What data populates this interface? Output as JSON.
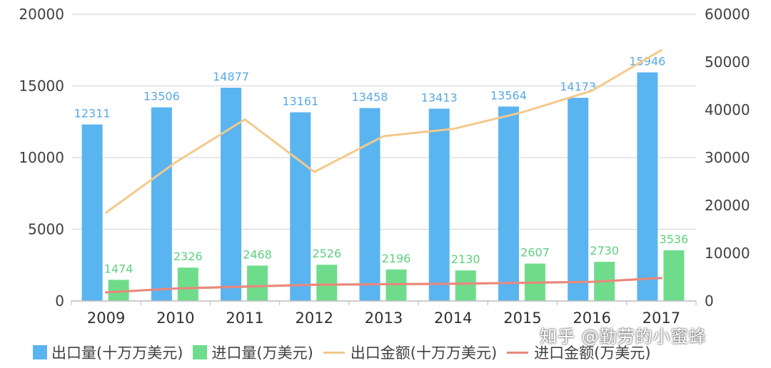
{
  "chart_data": {
    "type": "bar",
    "categories": [
      "2009",
      "2010",
      "2011",
      "2012",
      "2013",
      "2014",
      "2015",
      "2016",
      "2017"
    ],
    "series": [
      {
        "name": "出口量(十万万美元)",
        "type": "bar",
        "axis": "left",
        "color": "#5ab4f0",
        "values": [
          12311,
          13506,
          14877,
          13161,
          13458,
          13413,
          13564,
          14173,
          15946
        ]
      },
      {
        "name": "进口量(万美元)",
        "type": "bar",
        "axis": "left",
        "color": "#6fdc8c",
        "values": [
          1474,
          2326,
          2468,
          2526,
          2196,
          2130,
          2607,
          2730,
          3536
        ]
      },
      {
        "name": "出口金额(十万万美元)",
        "type": "line",
        "axis": "right",
        "color": "#f3c98b",
        "values": [
          18500,
          29000,
          38000,
          27000,
          34500,
          36000,
          39500,
          44000,
          52500
        ]
      },
      {
        "name": "进口金额(万美元)",
        "type": "line",
        "axis": "right",
        "color": "#e8897c",
        "values": [
          1800,
          2600,
          3000,
          3400,
          3500,
          3600,
          3800,
          4000,
          4800
        ]
      }
    ],
    "yleft": {
      "ylim": [
        0,
        20000
      ],
      "ticks": [
        "0",
        "5000",
        "10000",
        "15000",
        "20000"
      ]
    },
    "yright": {
      "ylim": [
        0,
        60000
      ],
      "ticks": [
        "0",
        "10000",
        "20000",
        "30000",
        "40000",
        "50000",
        "60000"
      ]
    },
    "grid": true,
    "legend_position": "bottom"
  },
  "legend": {
    "item1": "出口量(十万万美元)",
    "item2": "进口量(万美元)",
    "item3": "出口金额(十万万美元)",
    "item4": "进口金额(万美元)"
  },
  "watermark": "知乎 @勤劳的小蜜蜂"
}
